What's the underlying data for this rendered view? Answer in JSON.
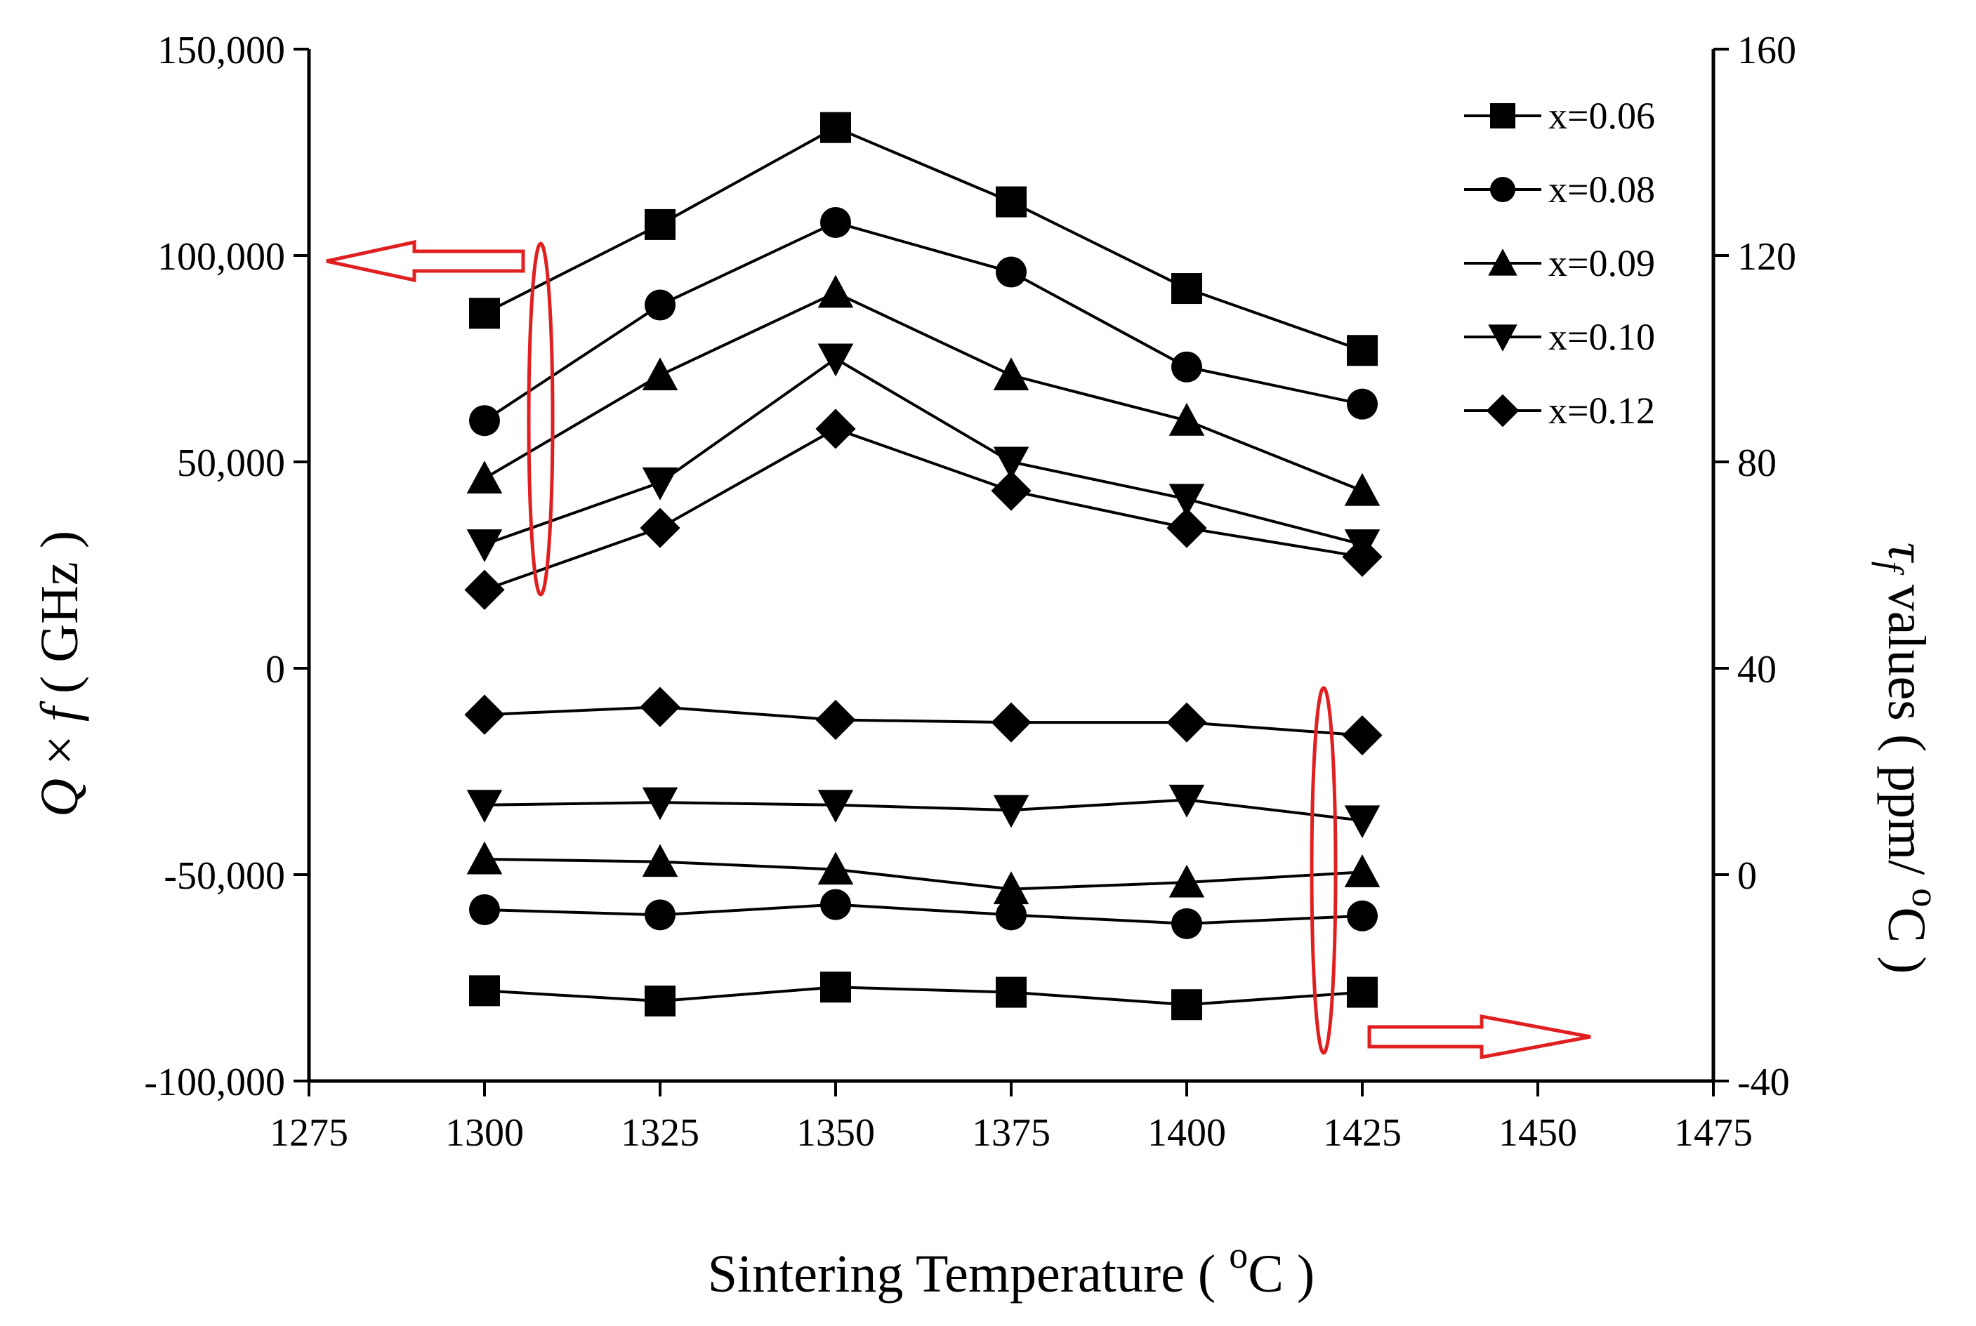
{
  "chart_data": {
    "type": "line",
    "xlabel": "Sintering Temperature ( oC )",
    "xlabel_parts": {
      "main": "Sintering Temperature ( ",
      "sup": "o",
      "tail": "C )"
    },
    "ylabel": "Q × f ( GHz )",
    "ylabel_parts": {
      "q": "Q",
      "times": " × ",
      "f": "f",
      "unit": " ( GHz )"
    },
    "y2label": "τf values ( ppm/ oC )",
    "y2label_parts": {
      "tau": "τ",
      "sub": "f",
      "main": " values ( ppm/ ",
      "sup": "o",
      "tail": "C )"
    },
    "xlim": [
      1275,
      1475
    ],
    "ylim": [
      -100000,
      150000
    ],
    "y2lim": [
      -40,
      160
    ],
    "xticks": [
      "1275",
      "1300",
      "1325",
      "1350",
      "1375",
      "1400",
      "1425",
      "1450",
      "1475"
    ],
    "yticks": [
      "-100,000",
      "-50,000",
      "0",
      "50,000",
      "100,000",
      "150,000"
    ],
    "y2ticks": [
      "-40",
      "0",
      "40",
      "80",
      "120",
      "160"
    ],
    "legend_position": "top-right",
    "x": [
      1300,
      1325,
      1350,
      1375,
      1400,
      1425
    ],
    "series": [
      {
        "name": "x=0.06",
        "marker": "square",
        "axis": "left",
        "values": [
          86000,
          107500,
          131000,
          113000,
          92000,
          77000
        ]
      },
      {
        "name": "x=0.08",
        "marker": "circle",
        "axis": "left",
        "values": [
          60000,
          88000,
          108000,
          96000,
          73000,
          64000
        ]
      },
      {
        "name": "x=0.09",
        "marker": "triangle-up",
        "axis": "left",
        "values": [
          46000,
          71000,
          91000,
          71000,
          60000,
          43000
        ]
      },
      {
        "name": "x=0.10",
        "marker": "triangle-down",
        "axis": "left",
        "values": [
          30000,
          45000,
          75000,
          50000,
          41000,
          30000
        ]
      },
      {
        "name": "x=0.12",
        "marker": "diamond",
        "axis": "left",
        "values": [
          19000,
          34000,
          58000,
          43000,
          34000,
          27000
        ]
      },
      {
        "name": "x=0.06",
        "marker": "square",
        "axis": "right",
        "values": [
          -22.5,
          -24.5,
          -21.8,
          -22.8,
          -25.2,
          -22.8
        ]
      },
      {
        "name": "x=0.08",
        "marker": "circle",
        "axis": "right",
        "values": [
          -6.8,
          -7.8,
          -5.8,
          -7.8,
          -9.5,
          -8.0
        ]
      },
      {
        "name": "x=0.09",
        "marker": "triangle-up",
        "axis": "right",
        "values": [
          3.0,
          2.5,
          1.0,
          -2.8,
          -1.5,
          0.5
        ]
      },
      {
        "name": "x=0.10",
        "marker": "triangle-down",
        "axis": "right",
        "values": [
          13.5,
          14.0,
          13.5,
          12.5,
          14.5,
          10.5
        ]
      },
      {
        "name": "x=0.12",
        "marker": "diamond",
        "axis": "right",
        "values": [
          31.0,
          32.5,
          30.0,
          29.5,
          29.5,
          27.0
        ]
      }
    ],
    "annotation_color": "#e02020"
  }
}
